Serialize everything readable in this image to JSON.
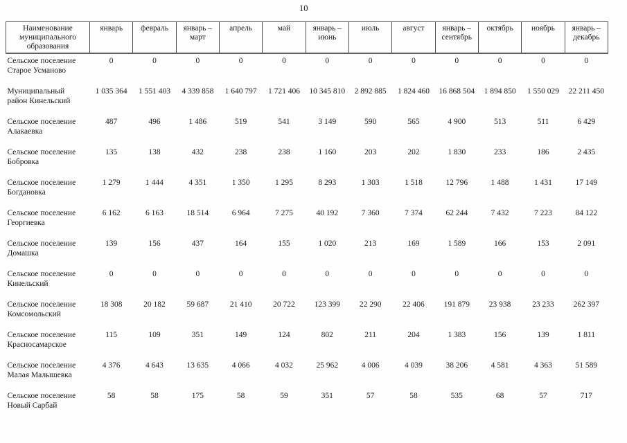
{
  "page": {
    "number": "10"
  },
  "table": {
    "name_header": "Наименование муниципального образования",
    "columns": [
      "январь",
      "февраль",
      "январь – март",
      "апрель",
      "май",
      "январь – июнь",
      "июль",
      "август",
      "январь – сентябрь",
      "октябрь",
      "ноябрь",
      "январь – декабрь"
    ],
    "rows": [
      {
        "name": "Сельское поселение Старое Усманово",
        "values": [
          "0",
          "0",
          "0",
          "0",
          "0",
          "0",
          "0",
          "0",
          "0",
          "0",
          "0",
          "0"
        ]
      },
      {
        "name": "Муниципальный район Кинельский",
        "values": [
          "1 035 364",
          "1 551 403",
          "4 339 858",
          "1 640 797",
          "1 721 406",
          "10 345 810",
          "2 892 885",
          "1 824 460",
          "16 868 504",
          "1 894 850",
          "1 550 029",
          "22 211 450"
        ]
      },
      {
        "name": "Сельское поселение Алакаевка",
        "values": [
          "487",
          "496",
          "1 486",
          "519",
          "541",
          "3 149",
          "590",
          "565",
          "4 900",
          "513",
          "511",
          "6 429"
        ]
      },
      {
        "name": "Сельское поселение Бобровка",
        "values": [
          "135",
          "138",
          "432",
          "238",
          "238",
          "1 160",
          "203",
          "202",
          "1 830",
          "233",
          "186",
          "2 435"
        ]
      },
      {
        "name": "Сельское поселение Богдановка",
        "values": [
          "1 279",
          "1 444",
          "4 351",
          "1 350",
          "1 295",
          "8 293",
          "1 303",
          "1 518",
          "12 796",
          "1 488",
          "1 431",
          "17 149"
        ]
      },
      {
        "name": "Сельское поселение Георгиевка",
        "values": [
          "6 162",
          "6 163",
          "18 514",
          "6 964",
          "7 275",
          "40 192",
          "7 360",
          "7 374",
          "62 244",
          "7 432",
          "7 223",
          "84 122"
        ]
      },
      {
        "name": "Сельское поселение Домашка",
        "values": [
          "139",
          "156",
          "437",
          "164",
          "155",
          "1 020",
          "213",
          "169",
          "1 589",
          "166",
          "153",
          "2 091"
        ]
      },
      {
        "name": "Сельское поселение Кинельский",
        "values": [
          "0",
          "0",
          "0",
          "0",
          "0",
          "0",
          "0",
          "0",
          "0",
          "0",
          "0",
          "0"
        ]
      },
      {
        "name": "Сельское поселение Комсомольский",
        "values": [
          "18 308",
          "20 182",
          "59 687",
          "21 410",
          "20 722",
          "123 399",
          "22 290",
          "22 406",
          "191 879",
          "23 938",
          "23 233",
          "262 397"
        ]
      },
      {
        "name": "Сельское поселение Красносамарское",
        "values": [
          "115",
          "109",
          "351",
          "149",
          "124",
          "802",
          "211",
          "204",
          "1 383",
          "156",
          "139",
          "1 811"
        ]
      },
      {
        "name": "Сельское поселение Малая Малышевка",
        "values": [
          "4 376",
          "4 643",
          "13 635",
          "4 066",
          "4 032",
          "25 962",
          "4 006",
          "4 039",
          "38 206",
          "4 581",
          "4 363",
          "51 589"
        ]
      },
      {
        "name": "Сельское поселение Новый Сарбай",
        "values": [
          "58",
          "58",
          "175",
          "58",
          "59",
          "351",
          "57",
          "58",
          "535",
          "68",
          "57",
          "717"
        ]
      }
    ]
  }
}
